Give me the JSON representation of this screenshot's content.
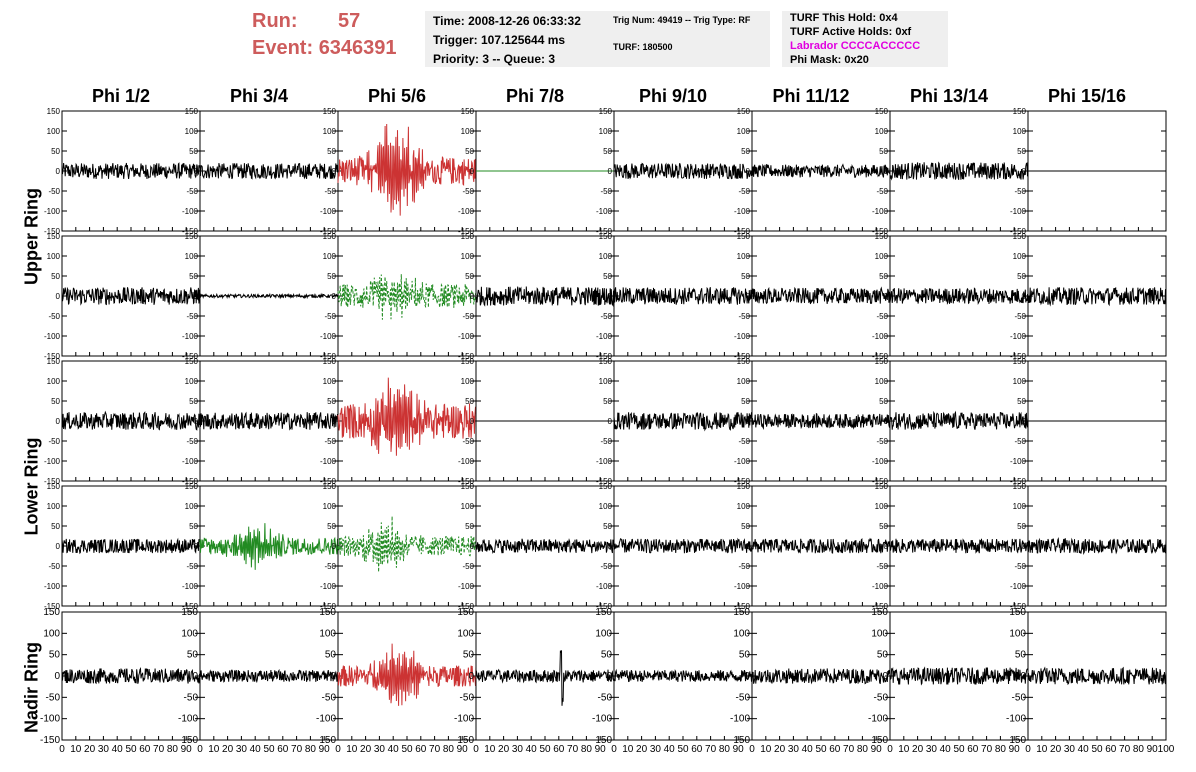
{
  "run": {
    "run_label": "Run:",
    "run_value": "57",
    "event_label": "Event:",
    "event_value": "6346391"
  },
  "info1": {
    "time": "Time: 2008-12-26 06:33:32",
    "trigger": "Trigger: 107.125644 ms",
    "priority": "Priority: 3 -- Queue: 3"
  },
  "info2": {
    "trig": "Trig Num: 49419 -- Trig Type: RF",
    "turf": "TURF: 180500"
  },
  "info3": {
    "hold": "TURF This Hold: 0x4",
    "active": "TURF Active Holds: 0xf",
    "labrador": "Labrador CCCCACCCCC",
    "phimask": "Phi Mask: 0x20"
  },
  "colors": {
    "red": "#cc3333",
    "green": "#228b22",
    "black": "#000000",
    "magenta": "#e000e0",
    "run_text": "#cd5c5c"
  },
  "chart_data": {
    "type": "line",
    "columns": [
      "Phi 1/2",
      "Phi 3/4",
      "Phi 5/6",
      "Phi 7/8",
      "Phi 9/10",
      "Phi 11/12",
      "Phi 13/14",
      "Phi 15/16"
    ],
    "rings": [
      "Upper Ring",
      "Lower Ring",
      "Nadir Ring"
    ],
    "ylim": [
      -150,
      150
    ],
    "xlim": [
      0,
      100
    ],
    "y_ticks": [
      "150",
      "100",
      "50",
      "0",
      "-50",
      "-100",
      "-150"
    ],
    "x_ticks": [
      "0",
      "10",
      "20",
      "30",
      "40",
      "50",
      "60",
      "70",
      "80",
      "90",
      "100"
    ],
    "grid": false,
    "rows": [
      {
        "ring": "Upper Ring",
        "traces": [
          {
            "color": "black",
            "amp": 20,
            "kind": "noise"
          },
          {
            "color": "black",
            "amp": 20,
            "kind": "noise"
          },
          {
            "color": "red",
            "amp": 35,
            "kind": "pulse",
            "peak": 140,
            "center": 43
          },
          {
            "color": "green",
            "amp": 0,
            "kind": "flat"
          },
          {
            "color": "black",
            "amp": 20,
            "kind": "noise"
          },
          {
            "color": "black",
            "amp": 16,
            "kind": "noise"
          },
          {
            "color": "black",
            "amp": 22,
            "kind": "noise"
          },
          {
            "color": "black",
            "amp": 0,
            "kind": "flat"
          }
        ]
      },
      {
        "ring": "Upper Ring",
        "traces": [
          {
            "color": "black",
            "amp": 22,
            "kind": "noise"
          },
          {
            "color": "black",
            "amp": 4,
            "kind": "noise"
          },
          {
            "color": "green",
            "amp": 30,
            "kind": "dashed",
            "peak": 55,
            "center": 40
          },
          {
            "color": "black",
            "amp": 24,
            "kind": "noise"
          },
          {
            "color": "black",
            "amp": 22,
            "kind": "noise"
          },
          {
            "color": "black",
            "amp": 20,
            "kind": "noise"
          },
          {
            "color": "black",
            "amp": 20,
            "kind": "noise"
          },
          {
            "color": "black",
            "amp": 22,
            "kind": "noise"
          }
        ]
      },
      {
        "ring": "Lower Ring",
        "traces": [
          {
            "color": "black",
            "amp": 22,
            "kind": "noise"
          },
          {
            "color": "black",
            "amp": 22,
            "kind": "noise"
          },
          {
            "color": "red",
            "amp": 45,
            "kind": "pulse",
            "peak": 110,
            "center": 42
          },
          {
            "color": "black",
            "amp": 0,
            "kind": "flat"
          },
          {
            "color": "black",
            "amp": 22,
            "kind": "noise"
          },
          {
            "color": "black",
            "amp": 18,
            "kind": "noise"
          },
          {
            "color": "black",
            "amp": 22,
            "kind": "noise"
          },
          {
            "color": "black",
            "amp": 0,
            "kind": "flat"
          }
        ]
      },
      {
        "ring": "Lower Ring",
        "traces": [
          {
            "color": "black",
            "amp": 18,
            "kind": "noise"
          },
          {
            "color": "green",
            "amp": 22,
            "kind": "pulse",
            "peak": 50,
            "center": 40
          },
          {
            "color": "green",
            "amp": 25,
            "kind": "dashed",
            "peak": 65,
            "center": 35
          },
          {
            "color": "black",
            "amp": 18,
            "kind": "noise"
          },
          {
            "color": "black",
            "amp": 18,
            "kind": "noise"
          },
          {
            "color": "black",
            "amp": 18,
            "kind": "noise"
          },
          {
            "color": "black",
            "amp": 18,
            "kind": "noise"
          },
          {
            "color": "black",
            "amp": 18,
            "kind": "noise"
          }
        ]
      },
      {
        "ring": "Nadir Ring",
        "traces": [
          {
            "color": "black",
            "amp": 18,
            "kind": "noise"
          },
          {
            "color": "black",
            "amp": 14,
            "kind": "noise"
          },
          {
            "color": "red",
            "amp": 25,
            "kind": "pulse",
            "peak": 80,
            "center": 45
          },
          {
            "color": "black",
            "amp": 15,
            "kind": "spike",
            "peak": 80,
            "center": 62
          },
          {
            "color": "black",
            "amp": 14,
            "kind": "noise"
          },
          {
            "color": "black",
            "amp": 18,
            "kind": "noise"
          },
          {
            "color": "black",
            "amp": 20,
            "kind": "noise"
          },
          {
            "color": "black",
            "amp": 20,
            "kind": "noise"
          }
        ]
      }
    ]
  }
}
